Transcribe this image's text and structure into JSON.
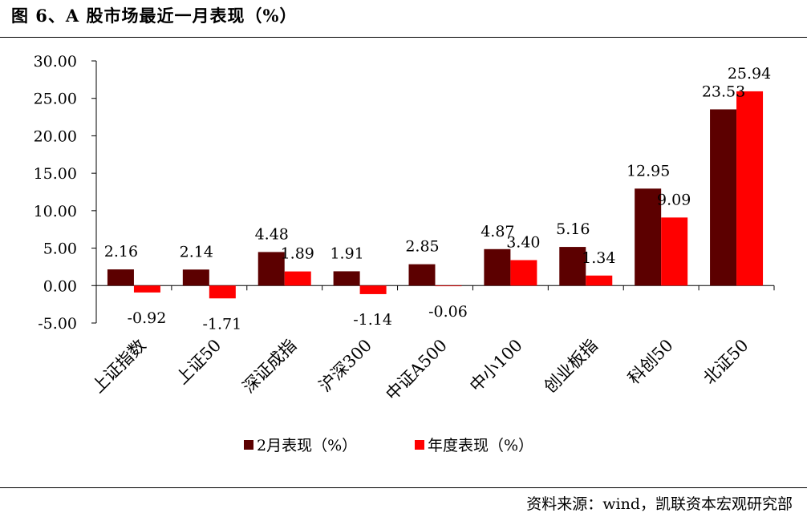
{
  "header": {
    "title": "图 6、A 股市场最近一月表现（%）"
  },
  "footer": {
    "source": "资料来源：wind，凯联资本宏观研究部"
  },
  "chart_data": {
    "type": "bar",
    "title": "",
    "xlabel": "",
    "ylabel": "",
    "ylim": [
      -5,
      30
    ],
    "yticks": [
      "-5.00",
      "0.00",
      "5.00",
      "10.00",
      "15.00",
      "20.00",
      "25.00",
      "30.00"
    ],
    "grid": false,
    "legend_position": "bottom",
    "categories": [
      "上证指数",
      "上证50",
      "深证成指",
      "沪深300",
      "中证A500",
      "中小100",
      "创业板指",
      "科创50",
      "北证50"
    ],
    "series": [
      {
        "name": "2月表现（%）",
        "color": "#5c0000",
        "values": [
          2.16,
          2.14,
          4.48,
          1.91,
          2.85,
          4.87,
          5.16,
          12.95,
          23.53
        ],
        "labels": [
          "2.16",
          "2.14",
          "4.48",
          "1.91",
          "2.85",
          "4.87",
          "5.16",
          "12.95",
          "23.53"
        ]
      },
      {
        "name": "年度表现（%）",
        "color": "#ff0000",
        "values": [
          -0.92,
          -1.71,
          1.89,
          -1.14,
          -0.06,
          3.4,
          1.34,
          9.09,
          25.94
        ],
        "labels": [
          "-0.92",
          "-1.71",
          "1.89",
          "-1.14",
          "-0.06",
          "3.40",
          "1.34",
          "9.09",
          "25.94"
        ]
      }
    ]
  }
}
